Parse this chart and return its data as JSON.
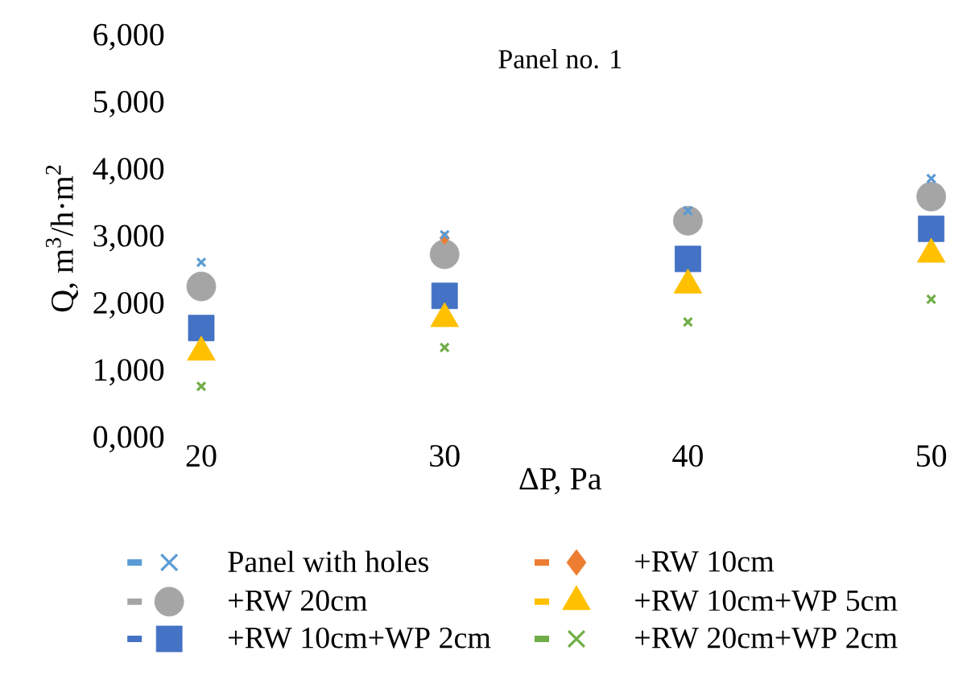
{
  "chart_data": {
    "type": "scatter",
    "title": "Panel no. 1",
    "xlabel": "ΔP, Pa",
    "ylabel": "Q, m$^{3}$/h·m$^{2}$",
    "categories": [
      "20",
      "30",
      "40",
      "50"
    ],
    "ylim": [
      0,
      6000
    ],
    "yticks": [
      {
        "value": 0,
        "label": "0,000"
      },
      {
        "value": 1000,
        "label": "1,000"
      },
      {
        "value": 2000,
        "label": "2,000"
      },
      {
        "value": 3000,
        "label": "3,000"
      },
      {
        "value": 4000,
        "label": "4,000"
      },
      {
        "value": 5000,
        "label": "5,000"
      },
      {
        "value": 6000,
        "label": "6,000"
      }
    ],
    "grid": false,
    "legend": "bottom",
    "series": [
      {
        "name": "Panel with holes",
        "color": "#5b9bd5",
        "marker": "cross",
        "values": [
          2640,
          3050,
          3410,
          3890
        ]
      },
      {
        "name": "+RW 10cm",
        "color": "#ed7d31",
        "marker": "diamond",
        "values": [
          null,
          3000,
          null,
          null
        ]
      },
      {
        "name": "+RW 20cm",
        "color": "#a5a5a5",
        "marker": "circle",
        "values": [
          2280,
          2760,
          3260,
          3620
        ]
      },
      {
        "name": "+RW 10cm+WP 5cm",
        "color": "#ffc000",
        "marker": "triangle",
        "values": [
          1300,
          1800,
          2300,
          2760
        ]
      },
      {
        "name": "+RW 10cm+WP 2cm",
        "color": "#4472c4",
        "marker": "square",
        "values": [
          1660,
          2140,
          2690,
          3140
        ]
      },
      {
        "name": "+RW 20cm+WP 2cm",
        "color": "#70ad47",
        "marker": "cross",
        "values": [
          790,
          1370,
          1750,
          2090
        ]
      }
    ]
  }
}
